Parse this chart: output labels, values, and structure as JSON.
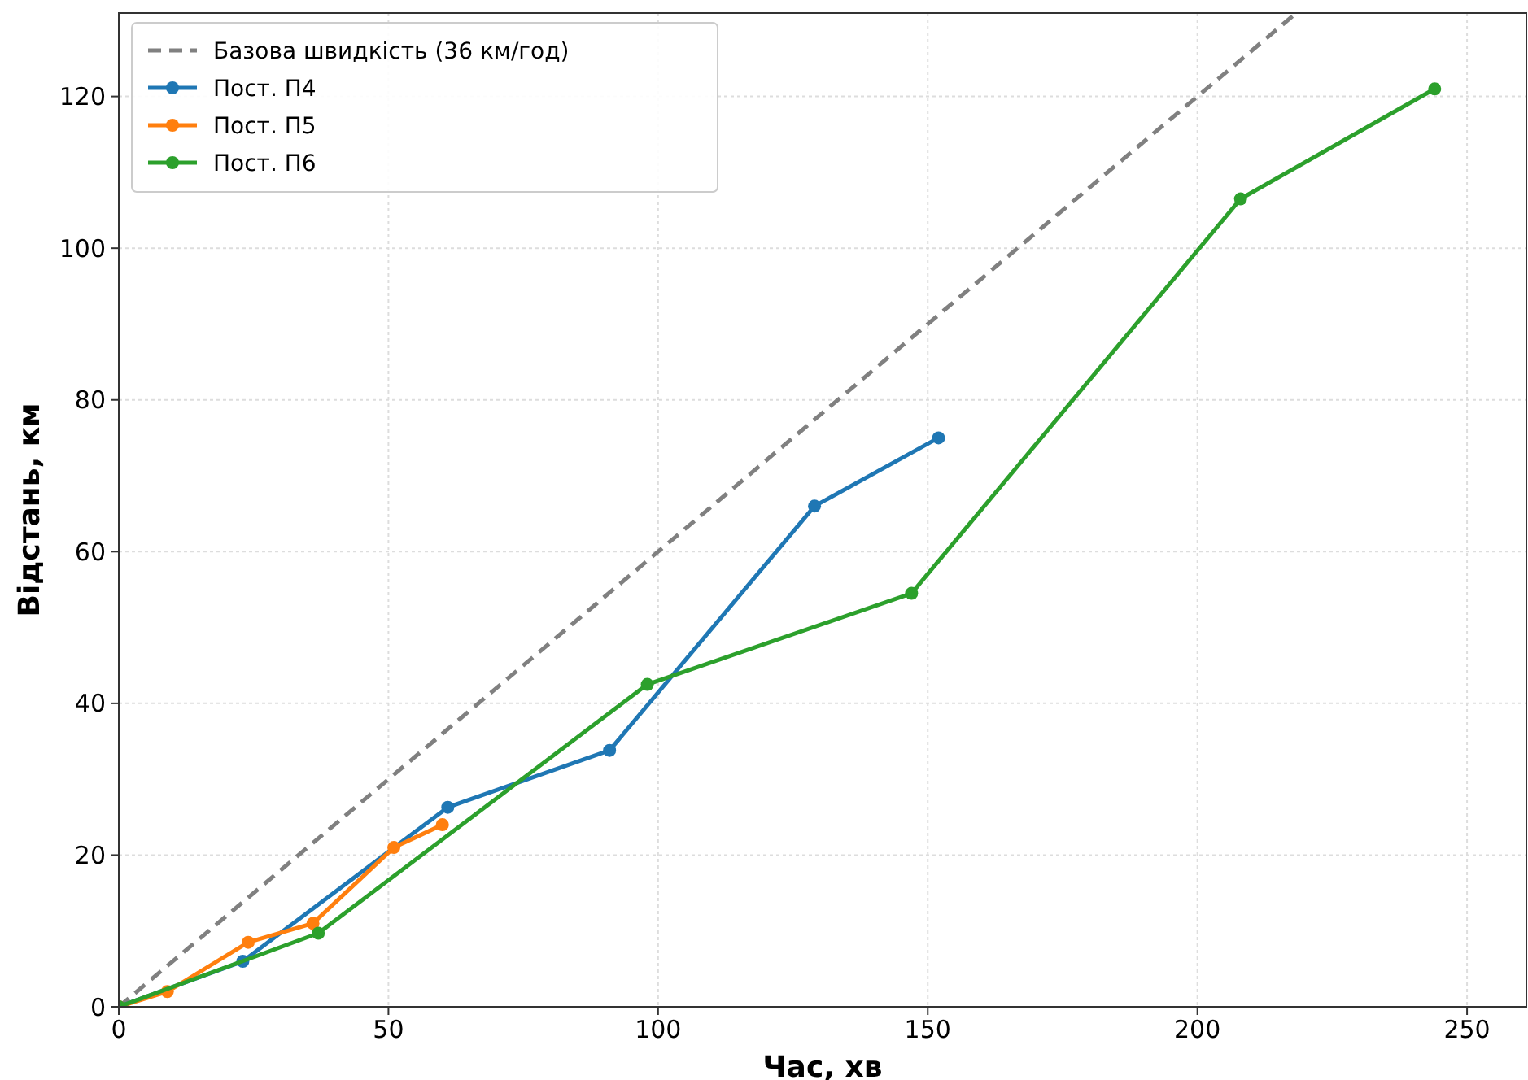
{
  "chart_data": {
    "type": "line",
    "xlabel": "Час, хв",
    "ylabel": "Відстань, км",
    "xlim": [
      0,
      261
    ],
    "ylim": [
      0,
      131
    ],
    "xticks": [
      0,
      50,
      100,
      150,
      200,
      250
    ],
    "yticks": [
      0,
      20,
      40,
      60,
      80,
      100,
      120
    ],
    "grid": true,
    "legend": "top left",
    "marker": "circle",
    "line_style": "solid",
    "series": [
      {
        "name": "Базова швидкість (36 км/год)",
        "color": "#808080",
        "x": [
          0,
          218
        ],
        "values": [
          0,
          130.8
        ],
        "marker": "none",
        "line_style": "dashed"
      },
      {
        "name": "Пост. П4",
        "color": "#1f77b4",
        "x": [
          0,
          23,
          61,
          91,
          129,
          152
        ],
        "values": [
          0,
          6,
          26.3,
          33.8,
          66,
          75
        ]
      },
      {
        "name": "Пост. П5",
        "color": "#ff7f0e",
        "x": [
          0,
          9,
          24,
          36,
          51,
          60
        ],
        "values": [
          0,
          2,
          8.5,
          11,
          21,
          24
        ]
      },
      {
        "name": "Пост. П6",
        "color": "#2ca02c",
        "x": [
          0,
          37,
          98,
          147,
          208,
          244
        ],
        "values": [
          0,
          9.7,
          42.5,
          54.5,
          106.5,
          121
        ]
      }
    ]
  }
}
